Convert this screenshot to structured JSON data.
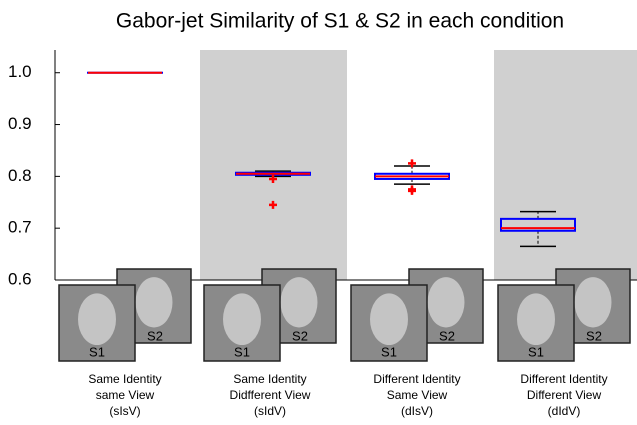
{
  "chart_data": {
    "type": "box",
    "title": "Gabor-jet Similarity of S1 & S2 in each condition",
    "categories": [
      [
        "Same Identity",
        "same View",
        "(sIsV)"
      ],
      [
        "Same Identity",
        "Didfferent View",
        "(sIdV)"
      ],
      [
        "Different Identity",
        "Same View",
        "(dIsV)"
      ],
      [
        "Different Identity",
        "Different View",
        "(dIdV)"
      ]
    ],
    "face_labels": [
      "S1",
      "S2"
    ],
    "boxes": [
      {
        "whisker_low": 1.0,
        "q1": 1.0,
        "median": 1.0,
        "q3": 1.0,
        "whisker_high": 1.0,
        "outliers": []
      },
      {
        "whisker_low": 0.8,
        "q1": 0.803,
        "median": 0.805,
        "q3": 0.807,
        "whisker_high": 0.81,
        "outliers": [
          0.795,
          0.745
        ]
      },
      {
        "whisker_low": 0.785,
        "q1": 0.795,
        "median": 0.8,
        "q3": 0.805,
        "whisker_high": 0.82,
        "outliers": [
          0.825,
          0.775,
          0.772
        ]
      },
      {
        "whisker_low": 0.665,
        "q1": 0.695,
        "median": 0.7,
        "q3": 0.718,
        "whisker_high": 0.732,
        "outliers": []
      }
    ],
    "box_color": "#0000ff",
    "median_color": "#ff0000",
    "whisker_color": "#000000",
    "outlier_color": "#ff0000",
    "ylim": [
      0.6,
      1.04
    ],
    "yticks": [
      0.6,
      0.7,
      0.8,
      0.9,
      {
        "value": 1,
        "label": "1.0"
      }
    ]
  }
}
